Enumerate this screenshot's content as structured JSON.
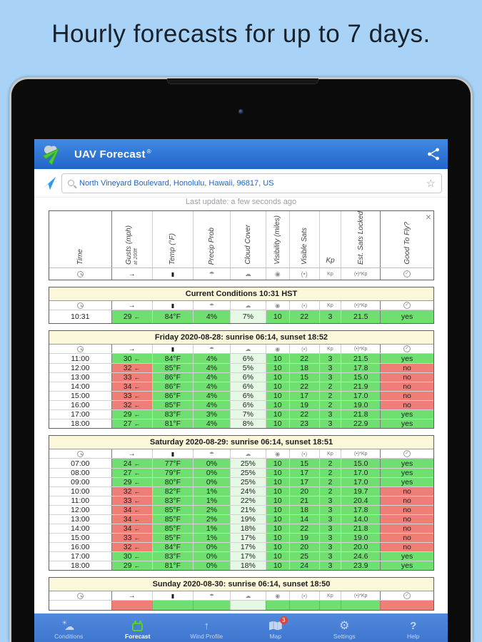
{
  "page": {
    "title": "Hourly forecasts for up to 7 days."
  },
  "app": {
    "title": "UAV Forecast",
    "registered": "®",
    "location": "North Vineyard Boulevard, Honolulu, Hawaii, 96817, US",
    "last_update": "Last update: a few seconds ago",
    "close_label": "×",
    "favorite_star": "☆"
  },
  "columns": {
    "headers": [
      "Time",
      "Gusts (mph)",
      "Temp (°F)",
      "Precip Prob",
      "Cloud Cover",
      "Visibility (miles)",
      "Visible Sats",
      "Kp",
      "Est. Sats Locked",
      "Good To Fly?"
    ],
    "gusts_sub": "at 200ft",
    "flat_index": 7,
    "icons": [
      "",
      "→",
      "▮",
      "☂",
      "☁",
      "◉",
      "(•)",
      "Kp",
      "(•)*Kp",
      "✓"
    ],
    "icon_names": [
      "time-icon",
      "wind-icon",
      "temp-icon",
      "precip-icon",
      "cloud-icon",
      "visibility-icon",
      "visible-sats-icon",
      "kp-label",
      "est-sats-kp-label",
      "check-circle-icon"
    ]
  },
  "wind_arrow": "←",
  "sections": [
    {
      "title": "Current Conditions 10:31 HST",
      "kind": "current",
      "rows": [
        {
          "time": "10:31",
          "gusts": "29",
          "temp": "84°F",
          "precip": "4%",
          "cloud": "7%",
          "vis": "10",
          "sats": "22",
          "kp": "3",
          "est": "21.5",
          "fly": "yes",
          "bad": false
        }
      ]
    },
    {
      "title": "Friday 2020-08-28: sunrise 06:14, sunset 18:52",
      "kind": "day",
      "rows": [
        {
          "time": "11:00",
          "gusts": "30",
          "temp": "84°F",
          "precip": "4%",
          "cloud": "6%",
          "vis": "10",
          "sats": "22",
          "kp": "3",
          "est": "21.5",
          "fly": "yes",
          "bad": false
        },
        {
          "time": "12:00",
          "gusts": "32",
          "temp": "85°F",
          "precip": "4%",
          "cloud": "5%",
          "vis": "10",
          "sats": "18",
          "kp": "3",
          "est": "17.8",
          "fly": "no",
          "bad": true
        },
        {
          "time": "13:00",
          "gusts": "33",
          "temp": "86°F",
          "precip": "4%",
          "cloud": "6%",
          "vis": "10",
          "sats": "15",
          "kp": "3",
          "est": "15.0",
          "fly": "no",
          "bad": true
        },
        {
          "time": "14:00",
          "gusts": "34",
          "temp": "86°F",
          "precip": "4%",
          "cloud": "6%",
          "vis": "10",
          "sats": "22",
          "kp": "2",
          "est": "21.9",
          "fly": "no",
          "bad": true
        },
        {
          "time": "15:00",
          "gusts": "33",
          "temp": "86°F",
          "precip": "4%",
          "cloud": "6%",
          "vis": "10",
          "sats": "17",
          "kp": "2",
          "est": "17.0",
          "fly": "no",
          "bad": true
        },
        {
          "time": "16:00",
          "gusts": "32",
          "temp": "85°F",
          "precip": "4%",
          "cloud": "6%",
          "vis": "10",
          "sats": "19",
          "kp": "2",
          "est": "19.0",
          "fly": "no",
          "bad": true
        },
        {
          "time": "17:00",
          "gusts": "29",
          "temp": "83°F",
          "precip": "3%",
          "cloud": "7%",
          "vis": "10",
          "sats": "22",
          "kp": "3",
          "est": "21.8",
          "fly": "yes",
          "bad": false
        },
        {
          "time": "18:00",
          "gusts": "27",
          "temp": "81°F",
          "precip": "4%",
          "cloud": "8%",
          "vis": "10",
          "sats": "23",
          "kp": "3",
          "est": "22.9",
          "fly": "yes",
          "bad": false
        }
      ]
    },
    {
      "title": "Saturday 2020-08-29: sunrise 06:14, sunset 18:51",
      "kind": "day",
      "rows": [
        {
          "time": "07:00",
          "gusts": "24",
          "temp": "77°F",
          "precip": "0%",
          "cloud": "25%",
          "vis": "10",
          "sats": "15",
          "kp": "2",
          "est": "15.0",
          "fly": "yes",
          "bad": false
        },
        {
          "time": "08:00",
          "gusts": "27",
          "temp": "79°F",
          "precip": "0%",
          "cloud": "25%",
          "vis": "10",
          "sats": "17",
          "kp": "2",
          "est": "17.0",
          "fly": "yes",
          "bad": false
        },
        {
          "time": "09:00",
          "gusts": "29",
          "temp": "80°F",
          "precip": "0%",
          "cloud": "25%",
          "vis": "10",
          "sats": "17",
          "kp": "2",
          "est": "17.0",
          "fly": "yes",
          "bad": false
        },
        {
          "time": "10:00",
          "gusts": "32",
          "temp": "82°F",
          "precip": "1%",
          "cloud": "24%",
          "vis": "10",
          "sats": "20",
          "kp": "2",
          "est": "19.7",
          "fly": "no",
          "bad": true
        },
        {
          "time": "11:00",
          "gusts": "33",
          "temp": "83°F",
          "precip": "1%",
          "cloud": "22%",
          "vis": "10",
          "sats": "21",
          "kp": "3",
          "est": "20.4",
          "fly": "no",
          "bad": true
        },
        {
          "time": "12:00",
          "gusts": "34",
          "temp": "85°F",
          "precip": "2%",
          "cloud": "21%",
          "vis": "10",
          "sats": "18",
          "kp": "3",
          "est": "17.8",
          "fly": "no",
          "bad": true
        },
        {
          "time": "13:00",
          "gusts": "34",
          "temp": "85°F",
          "precip": "2%",
          "cloud": "19%",
          "vis": "10",
          "sats": "14",
          "kp": "3",
          "est": "14.0",
          "fly": "no",
          "bad": true
        },
        {
          "time": "14:00",
          "gusts": "34",
          "temp": "85°F",
          "precip": "1%",
          "cloud": "18%",
          "vis": "10",
          "sats": "22",
          "kp": "3",
          "est": "21.8",
          "fly": "no",
          "bad": true
        },
        {
          "time": "15:00",
          "gusts": "33",
          "temp": "85°F",
          "precip": "1%",
          "cloud": "17%",
          "vis": "10",
          "sats": "19",
          "kp": "3",
          "est": "19.0",
          "fly": "no",
          "bad": true
        },
        {
          "time": "16:00",
          "gusts": "32",
          "temp": "84°F",
          "precip": "0%",
          "cloud": "17%",
          "vis": "10",
          "sats": "20",
          "kp": "3",
          "est": "20.0",
          "fly": "no",
          "bad": true
        },
        {
          "time": "17:00",
          "gusts": "30",
          "temp": "83°F",
          "precip": "0%",
          "cloud": "17%",
          "vis": "10",
          "sats": "25",
          "kp": "3",
          "est": "24.6",
          "fly": "yes",
          "bad": false
        },
        {
          "time": "18:00",
          "gusts": "29",
          "temp": "81°F",
          "precip": "0%",
          "cloud": "18%",
          "vis": "10",
          "sats": "24",
          "kp": "3",
          "est": "23.9",
          "fly": "yes",
          "bad": false
        }
      ]
    },
    {
      "title": "Sunday 2020-08-30: sunrise 06:14, sunset 18:50",
      "kind": "day",
      "rows": [],
      "partial_pattern": [
        "white",
        "red",
        "green",
        "green",
        "pale",
        "green",
        "green",
        "green",
        "green",
        "red"
      ]
    }
  ],
  "nav": {
    "items": [
      {
        "label": "Conditions",
        "icon": "sun-cloud",
        "active": false
      },
      {
        "label": "Forecast",
        "icon": "calendar",
        "active": true
      },
      {
        "label": "Wind Profile",
        "icon": "arrow-up",
        "active": false
      },
      {
        "label": "Map",
        "icon": "map",
        "active": false,
        "badge": "3"
      },
      {
        "label": "Settings",
        "icon": "gear",
        "active": false
      },
      {
        "label": "Help",
        "icon": "question",
        "active": false
      }
    ]
  },
  "colors": {
    "good_cell": "#6fdf6f",
    "bad_cell": "#ef7f76",
    "cloud_cell": "#e4f8e4",
    "section_header": "#fbf7da",
    "appbar_blue": "#2f74d6",
    "nav_blue": "#4a81d8",
    "background_blue": "#a8d3f7",
    "accent_green": "#55d12e",
    "badge_red": "#e04438",
    "location_text": "#1a66d2"
  }
}
